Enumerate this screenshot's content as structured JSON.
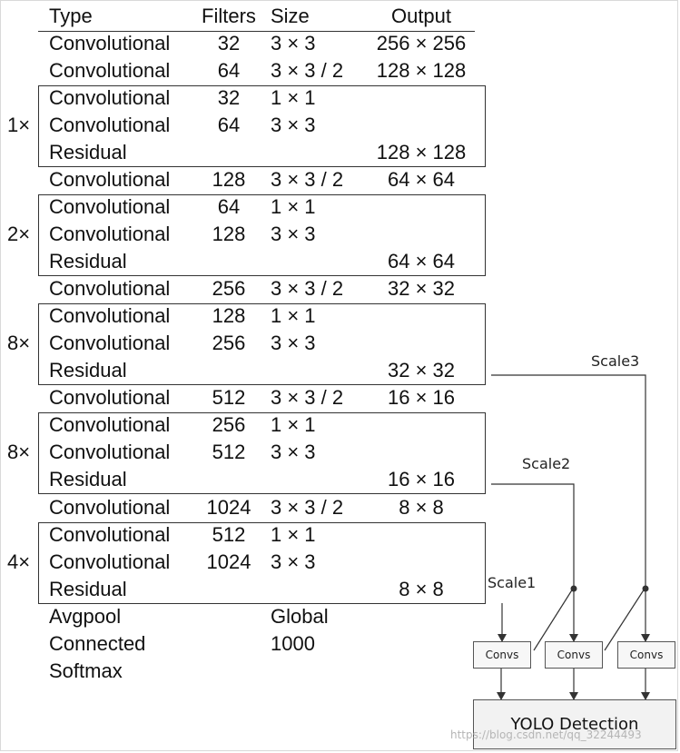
{
  "header": {
    "type": "Type",
    "filters": "Filters",
    "size": "Size",
    "output": "Output"
  },
  "rows": [
    {
      "type": "Convolutional",
      "filters": "32",
      "size": "3 × 3",
      "output": "256 × 256"
    },
    {
      "type": "Convolutional",
      "filters": "64",
      "size": "3 × 3 / 2",
      "output": "128 × 128"
    },
    {
      "type": "Convolutional",
      "filters": "32",
      "size": "1 × 1",
      "output": ""
    },
    {
      "type": "Convolutional",
      "filters": "64",
      "size": "3 × 3",
      "output": ""
    },
    {
      "type": "Residual",
      "filters": "",
      "size": "",
      "output": "128 × 128"
    },
    {
      "type": "Convolutional",
      "filters": "128",
      "size": "3 × 3 / 2",
      "output": "64 × 64"
    },
    {
      "type": "Convolutional",
      "filters": "64",
      "size": "1 × 1",
      "output": ""
    },
    {
      "type": "Convolutional",
      "filters": "128",
      "size": "3 × 3",
      "output": ""
    },
    {
      "type": "Residual",
      "filters": "",
      "size": "",
      "output": "64 × 64"
    },
    {
      "type": "Convolutional",
      "filters": "256",
      "size": "3 × 3 / 2",
      "output": "32 × 32"
    },
    {
      "type": "Convolutional",
      "filters": "128",
      "size": "1 × 1",
      "output": ""
    },
    {
      "type": "Convolutional",
      "filters": "256",
      "size": "3 × 3",
      "output": ""
    },
    {
      "type": "Residual",
      "filters": "",
      "size": "",
      "output": "32 × 32"
    },
    {
      "type": "Convolutional",
      "filters": "512",
      "size": "3 × 3 / 2",
      "output": "16 × 16"
    },
    {
      "type": "Convolutional",
      "filters": "256",
      "size": "1 × 1",
      "output": ""
    },
    {
      "type": "Convolutional",
      "filters": "512",
      "size": "3 × 3",
      "output": ""
    },
    {
      "type": "Residual",
      "filters": "",
      "size": "",
      "output": "16 × 16"
    },
    {
      "type": "Convolutional",
      "filters": "1024",
      "size": "3 × 3 / 2",
      "output": "8 × 8"
    },
    {
      "type": "Convolutional",
      "filters": "512",
      "size": "1 × 1",
      "output": ""
    },
    {
      "type": "Convolutional",
      "filters": "1024",
      "size": "3 × 3",
      "output": ""
    },
    {
      "type": "Residual",
      "filters": "",
      "size": "",
      "output": "8 × 8"
    },
    {
      "type": "Avgpool",
      "filters": "",
      "size": "Global",
      "output": ""
    },
    {
      "type": "Connected",
      "filters": "",
      "size": "1000",
      "output": ""
    },
    {
      "type": "Softmax",
      "filters": "",
      "size": "",
      "output": ""
    }
  ],
  "blocks": [
    {
      "repeat": "1×",
      "first_row": 2
    },
    {
      "repeat": "2×",
      "first_row": 6
    },
    {
      "repeat": "8×",
      "first_row": 10
    },
    {
      "repeat": "8×",
      "first_row": 14
    },
    {
      "repeat": "4×",
      "first_row": 18
    }
  ],
  "heads": {
    "scale1": "Scale1",
    "scale2": "Scale2",
    "scale3": "Scale3",
    "convs": [
      "Convs",
      "Convs",
      "Convs"
    ],
    "detection": "YOLO Detection"
  },
  "watermark": "https://blog.csdn.net/qq_32244493",
  "colors": {
    "line": "#333333",
    "box_fill": "#f2f2f2",
    "watermark": "#b5b5b5"
  }
}
